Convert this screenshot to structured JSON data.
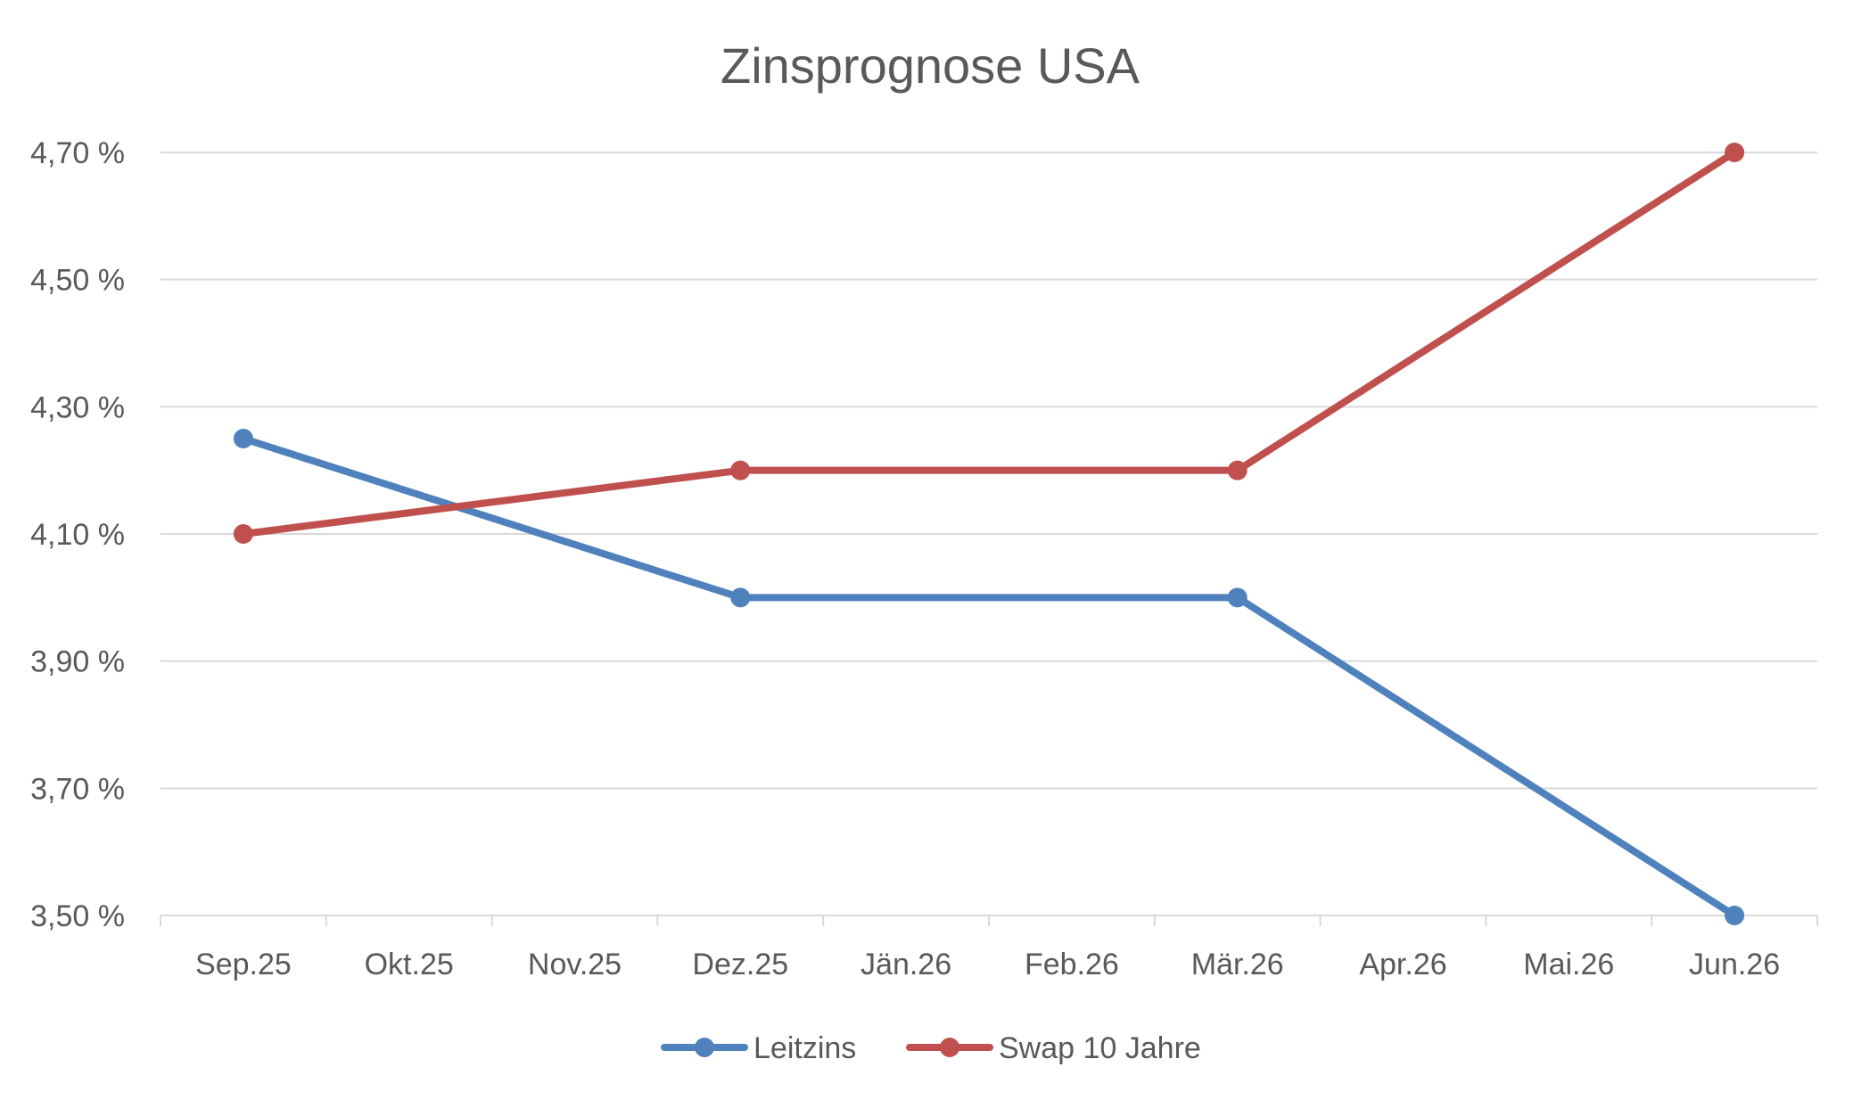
{
  "chart_data": {
    "type": "line",
    "title": "Zinsprognose USA",
    "xlabel": "",
    "ylabel": "",
    "categories": [
      "Sep.25",
      "Okt.25",
      "Nov.25",
      "Dez.25",
      "Jän.26",
      "Feb.26",
      "Mär.26",
      "Apr.26",
      "Mai.26",
      "Jun.26"
    ],
    "ylim": [
      3.5,
      4.7
    ],
    "yticks": [
      3.5,
      3.7,
      3.9,
      4.1,
      4.3,
      4.5,
      4.7
    ],
    "ytick_labels": [
      "3,50 %",
      "3,70 %",
      "3,90 %",
      "4,10 %",
      "4,30 %",
      "4,50 %",
      "4,70 %"
    ],
    "grid": true,
    "legend_position": "bottom",
    "series": [
      {
        "name": "Leitzins",
        "color": "#4f81bd",
        "points": [
          {
            "x": "Sep.25",
            "y": 4.25
          },
          {
            "x": "Dez.25",
            "y": 4.0
          },
          {
            "x": "Mär.26",
            "y": 4.0
          },
          {
            "x": "Jun.26",
            "y": 3.5
          }
        ]
      },
      {
        "name": "Swap 10 Jahre",
        "color": "#c0504d",
        "points": [
          {
            "x": "Sep.25",
            "y": 4.1
          },
          {
            "x": "Dez.25",
            "y": 4.2
          },
          {
            "x": "Mär.26",
            "y": 4.2
          },
          {
            "x": "Jun.26",
            "y": 4.7
          }
        ]
      }
    ]
  }
}
